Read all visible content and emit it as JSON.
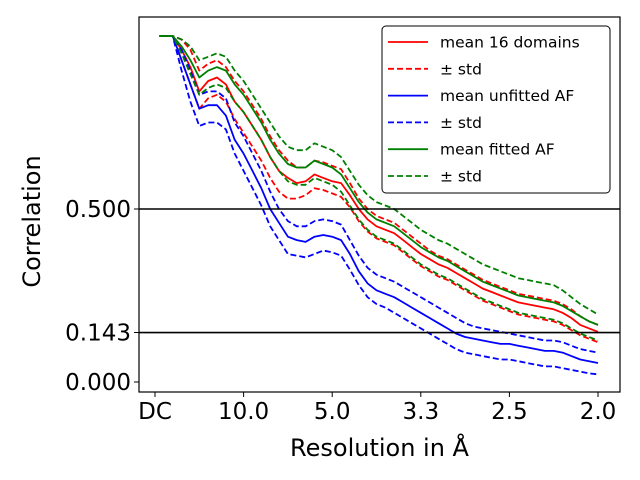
{
  "chart_data": {
    "type": "line",
    "xlabel": "Resolution in Å",
    "ylabel": "Correlation",
    "xlim": [
      0.0,
      0.5
    ],
    "ylim": [
      -0.03,
      1.06
    ],
    "x_ticks": [
      {
        "value": 0.0,
        "label": "DC"
      },
      {
        "value": 0.1,
        "label": "10.0"
      },
      {
        "value": 0.2,
        "label": "5.0"
      },
      {
        "value": 0.3,
        "label": "3.3"
      },
      {
        "value": 0.4,
        "label": "2.5"
      },
      {
        "value": 0.5,
        "label": "2.0"
      }
    ],
    "y_ticks": [
      {
        "value": 0.0,
        "label": "0.000"
      },
      {
        "value": 0.143,
        "label": "0.143"
      },
      {
        "value": 0.5,
        "label": "0.500"
      }
    ],
    "reference_lines": [
      {
        "y": 0.5,
        "color": "#000000"
      },
      {
        "y": 0.143,
        "color": "#000000"
      }
    ],
    "legend_position": "top-right",
    "x": [
      0.005,
      0.02,
      0.03,
      0.04,
      0.05,
      0.06,
      0.07,
      0.08,
      0.09,
      0.1,
      0.11,
      0.12,
      0.13,
      0.14,
      0.15,
      0.16,
      0.17,
      0.18,
      0.19,
      0.2,
      0.21,
      0.22,
      0.23,
      0.24,
      0.25,
      0.26,
      0.27,
      0.28,
      0.29,
      0.3,
      0.31,
      0.32,
      0.33,
      0.34,
      0.35,
      0.36,
      0.37,
      0.38,
      0.39,
      0.4,
      0.41,
      0.42,
      0.43,
      0.44,
      0.45,
      0.46,
      0.47,
      0.48,
      0.49,
      0.5
    ],
    "series": [
      {
        "name": "mean 16 domains",
        "color": "#ff0000",
        "dash": "solid",
        "values": [
          1.0,
          1.0,
          0.96,
          0.91,
          0.84,
          0.87,
          0.88,
          0.86,
          0.81,
          0.78,
          0.74,
          0.7,
          0.65,
          0.61,
          0.59,
          0.575,
          0.58,
          0.6,
          0.59,
          0.58,
          0.575,
          0.54,
          0.5,
          0.47,
          0.45,
          0.44,
          0.43,
          0.41,
          0.39,
          0.37,
          0.355,
          0.34,
          0.33,
          0.315,
          0.3,
          0.285,
          0.27,
          0.26,
          0.25,
          0.24,
          0.23,
          0.225,
          0.22,
          0.215,
          0.21,
          0.2,
          0.185,
          0.165,
          0.155,
          0.145
        ]
      },
      {
        "name": "± std",
        "color": "#ff0000",
        "dash": "dashed",
        "values": [
          1.0,
          1.0,
          0.99,
          0.96,
          0.9,
          0.92,
          0.93,
          0.91,
          0.87,
          0.84,
          0.8,
          0.76,
          0.71,
          0.67,
          0.64,
          0.62,
          0.62,
          0.64,
          0.635,
          0.625,
          0.615,
          0.575,
          0.53,
          0.5,
          0.48,
          0.47,
          0.46,
          0.44,
          0.42,
          0.4,
          0.38,
          0.365,
          0.355,
          0.34,
          0.325,
          0.31,
          0.295,
          0.285,
          0.275,
          0.265,
          0.255,
          0.25,
          0.245,
          0.24,
          0.235,
          0.225,
          0.21,
          0.19,
          0.175,
          0.165
        ]
      },
      {
        "name": "± std",
        "color": "#ff0000",
        "dash": "dashed",
        "values": [
          1.0,
          1.0,
          0.93,
          0.86,
          0.79,
          0.82,
          0.83,
          0.81,
          0.76,
          0.72,
          0.68,
          0.64,
          0.59,
          0.55,
          0.53,
          0.53,
          0.54,
          0.56,
          0.555,
          0.545,
          0.535,
          0.505,
          0.465,
          0.435,
          0.415,
          0.405,
          0.395,
          0.375,
          0.355,
          0.335,
          0.32,
          0.305,
          0.295,
          0.28,
          0.265,
          0.25,
          0.235,
          0.225,
          0.215,
          0.205,
          0.195,
          0.19,
          0.185,
          0.18,
          0.175,
          0.165,
          0.15,
          0.135,
          0.125,
          0.115
        ]
      },
      {
        "name": "mean unfitted AF",
        "color": "#0000ff",
        "dash": "solid",
        "values": [
          1.0,
          1.0,
          0.93,
          0.86,
          0.79,
          0.8,
          0.8,
          0.77,
          0.7,
          0.66,
          0.61,
          0.56,
          0.5,
          0.46,
          0.42,
          0.41,
          0.405,
          0.42,
          0.425,
          0.42,
          0.41,
          0.37,
          0.32,
          0.285,
          0.265,
          0.255,
          0.245,
          0.23,
          0.215,
          0.2,
          0.185,
          0.17,
          0.155,
          0.14,
          0.13,
          0.125,
          0.12,
          0.115,
          0.11,
          0.11,
          0.105,
          0.1,
          0.095,
          0.09,
          0.09,
          0.085,
          0.075,
          0.065,
          0.06,
          0.055
        ]
      },
      {
        "name": "± std",
        "color": "#0000ff",
        "dash": "dashed",
        "values": [
          1.0,
          1.0,
          0.96,
          0.9,
          0.83,
          0.84,
          0.84,
          0.82,
          0.75,
          0.71,
          0.66,
          0.61,
          0.55,
          0.5,
          0.465,
          0.45,
          0.45,
          0.465,
          0.47,
          0.465,
          0.455,
          0.41,
          0.365,
          0.33,
          0.31,
          0.3,
          0.29,
          0.275,
          0.26,
          0.245,
          0.23,
          0.215,
          0.2,
          0.185,
          0.17,
          0.16,
          0.155,
          0.15,
          0.145,
          0.14,
          0.135,
          0.13,
          0.125,
          0.12,
          0.12,
          0.115,
          0.105,
          0.095,
          0.09,
          0.085
        ]
      },
      {
        "name": "± std",
        "color": "#0000ff",
        "dash": "dashed",
        "values": [
          1.0,
          1.0,
          0.9,
          0.81,
          0.74,
          0.75,
          0.75,
          0.73,
          0.66,
          0.61,
          0.56,
          0.51,
          0.45,
          0.41,
          0.37,
          0.365,
          0.36,
          0.37,
          0.38,
          0.375,
          0.365,
          0.325,
          0.28,
          0.245,
          0.225,
          0.215,
          0.2,
          0.185,
          0.17,
          0.155,
          0.14,
          0.125,
          0.11,
          0.095,
          0.085,
          0.08,
          0.075,
          0.07,
          0.065,
          0.065,
          0.06,
          0.055,
          0.05,
          0.045,
          0.045,
          0.04,
          0.035,
          0.03,
          0.025,
          0.022
        ]
      },
      {
        "name": "mean fitted AF",
        "color": "#008000",
        "dash": "solid",
        "values": [
          1.0,
          1.0,
          0.97,
          0.93,
          0.88,
          0.9,
          0.91,
          0.9,
          0.86,
          0.83,
          0.79,
          0.75,
          0.7,
          0.66,
          0.63,
          0.62,
          0.62,
          0.64,
          0.63,
          0.62,
          0.6,
          0.56,
          0.52,
          0.49,
          0.47,
          0.46,
          0.45,
          0.43,
          0.41,
          0.39,
          0.375,
          0.36,
          0.35,
          0.335,
          0.32,
          0.305,
          0.29,
          0.28,
          0.27,
          0.26,
          0.25,
          0.245,
          0.24,
          0.235,
          0.23,
          0.22,
          0.205,
          0.19,
          0.175,
          0.165
        ]
      },
      {
        "name": "± std",
        "color": "#008000",
        "dash": "dashed",
        "values": [
          1.0,
          1.0,
          0.99,
          0.97,
          0.93,
          0.94,
          0.95,
          0.94,
          0.9,
          0.87,
          0.83,
          0.79,
          0.75,
          0.71,
          0.68,
          0.67,
          0.67,
          0.69,
          0.68,
          0.67,
          0.65,
          0.61,
          0.57,
          0.54,
          0.52,
          0.51,
          0.5,
          0.48,
          0.46,
          0.44,
          0.425,
          0.41,
          0.4,
          0.385,
          0.37,
          0.355,
          0.34,
          0.33,
          0.32,
          0.31,
          0.3,
          0.295,
          0.29,
          0.285,
          0.28,
          0.265,
          0.245,
          0.225,
          0.21,
          0.195
        ]
      },
      {
        "name": "± std",
        "color": "#008000",
        "dash": "dashed",
        "values": [
          1.0,
          1.0,
          0.95,
          0.89,
          0.83,
          0.85,
          0.86,
          0.85,
          0.81,
          0.78,
          0.74,
          0.7,
          0.65,
          0.61,
          0.58,
          0.57,
          0.57,
          0.59,
          0.58,
          0.57,
          0.55,
          0.51,
          0.47,
          0.44,
          0.42,
          0.41,
          0.4,
          0.38,
          0.36,
          0.34,
          0.325,
          0.31,
          0.3,
          0.285,
          0.27,
          0.255,
          0.24,
          0.23,
          0.22,
          0.21,
          0.2,
          0.195,
          0.19,
          0.185,
          0.18,
          0.17,
          0.155,
          0.14,
          0.13,
          0.12
        ]
      }
    ],
    "legend": [
      {
        "label": "mean 16 domains",
        "color": "#ff0000",
        "dash": "solid"
      },
      {
        "label": "± std",
        "color": "#ff0000",
        "dash": "dashed"
      },
      {
        "label": "mean unfitted AF",
        "color": "#0000ff",
        "dash": "solid"
      },
      {
        "label": "± std",
        "color": "#0000ff",
        "dash": "dashed"
      },
      {
        "label": "mean fitted AF",
        "color": "#008000",
        "dash": "solid"
      },
      {
        "label": "± std",
        "color": "#008000",
        "dash": "dashed"
      }
    ]
  }
}
